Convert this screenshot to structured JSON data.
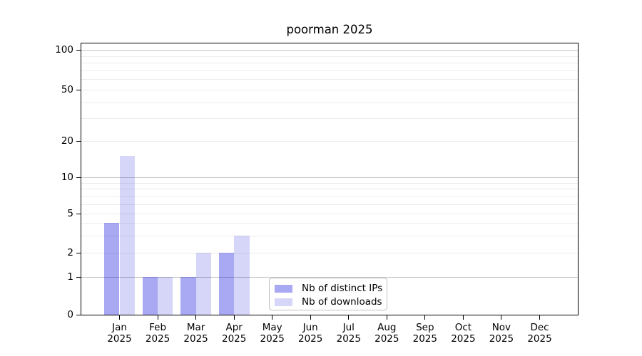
{
  "chart_data": {
    "type": "bar",
    "title": "poorman 2025",
    "categories": [
      "Jan 2025",
      "Feb 2025",
      "Mar 2025",
      "Apr 2025",
      "May 2025",
      "Jun 2025",
      "Jul 2025",
      "Aug 2025",
      "Sep 2025",
      "Oct 2025",
      "Nov 2025",
      "Dec 2025"
    ],
    "month_labels": [
      "Jan",
      "Feb",
      "Mar",
      "Apr",
      "May",
      "Jun",
      "Jul",
      "Aug",
      "Sep",
      "Oct",
      "Nov",
      "Dec"
    ],
    "year_label": "2025",
    "series": [
      {
        "name": "Nb of distinct IPs",
        "color": "rgba(0,0,220,0.34)",
        "values": [
          4,
          1,
          1,
          2,
          0,
          0,
          0,
          0,
          0,
          0,
          0,
          0
        ]
      },
      {
        "name": "Nb of downloads",
        "color": "rgba(0,0,220,0.16)",
        "values": [
          15,
          1,
          2,
          3,
          0,
          0,
          0,
          0,
          0,
          0,
          0,
          0
        ]
      }
    ],
    "y_axis": {
      "tick_labels": [
        "0",
        "1",
        "2",
        "5",
        "10",
        "20",
        "50",
        "100"
      ],
      "tick_values": [
        0,
        1,
        2,
        5,
        10,
        20,
        50,
        100
      ],
      "scale": "log-like",
      "ylim": [
        0,
        120
      ]
    },
    "grid": {
      "on": true,
      "major_at": [
        1,
        10,
        100
      ],
      "minor_at": [
        2,
        3,
        4,
        5,
        6,
        7,
        8,
        9,
        20,
        30,
        40,
        50,
        60,
        70,
        80,
        90
      ],
      "major_color": "#c4c4c4",
      "minor_color": "#ececec"
    },
    "legend": {
      "position": "bottom-center-left-inside",
      "border_color": "#c0c0c0"
    }
  }
}
